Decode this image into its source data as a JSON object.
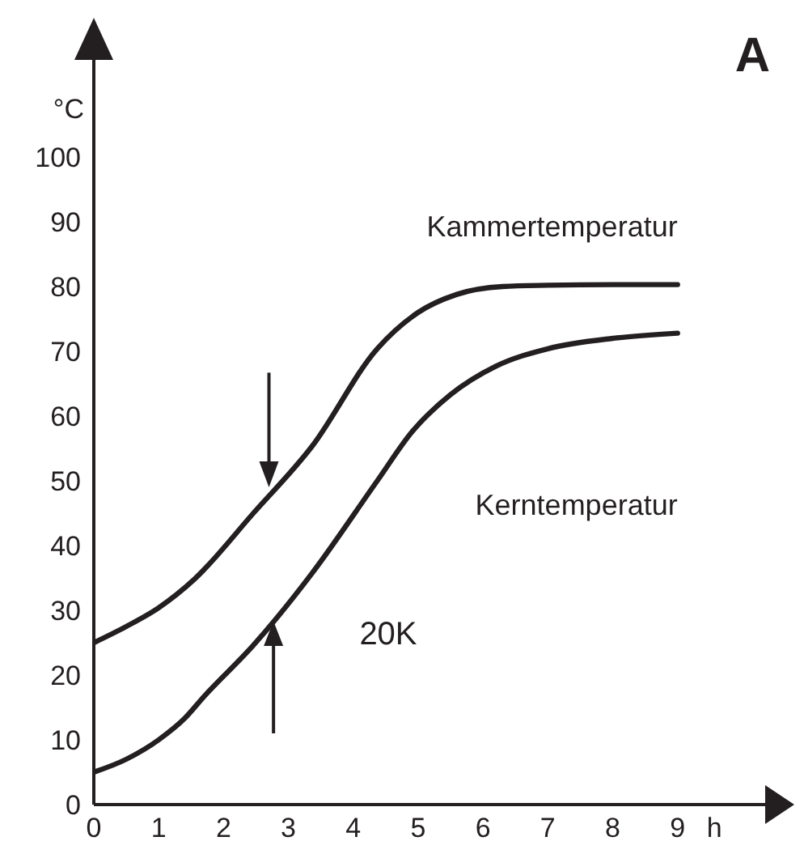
{
  "chart_data": {
    "type": "line",
    "title": "A",
    "xlabel": "h",
    "ylabel": "°C",
    "xlim": [
      0,
      10.5
    ],
    "ylim": [
      0,
      118
    ],
    "xticks": [
      0,
      1,
      2,
      3,
      4,
      5,
      6,
      7,
      8,
      9
    ],
    "yticks": [
      0,
      10,
      20,
      30,
      40,
      50,
      60,
      70,
      80,
      90,
      100
    ],
    "grid": false,
    "legend": false,
    "marker": "none",
    "line_style": "solid",
    "series": [
      {
        "name": "Kammertemperatur",
        "color": "#231f20",
        "x": [
          0,
          0.5,
          1,
          1.55,
          2.46,
          3.37,
          4.37,
          5,
          5.6,
          6.3,
          7,
          8,
          9
        ],
        "values": [
          25,
          27.5,
          30.4,
          34.8,
          45,
          55.4,
          70.4,
          76,
          78.8,
          80,
          80.2,
          80.3,
          80.3
        ]
      },
      {
        "name": "Kerntemperatur",
        "color": "#231f20",
        "x": [
          0,
          0.5,
          1,
          1.4,
          1.7,
          2.46,
          3.37,
          4.37,
          4.9,
          5.5,
          6.2,
          7,
          8,
          9
        ],
        "values": [
          5,
          7,
          10,
          13.3,
          16.7,
          24.6,
          35.8,
          50,
          57.5,
          63.3,
          67.7,
          70.4,
          72,
          72.8
        ]
      }
    ],
    "annotations": [
      "20K"
    ]
  }
}
